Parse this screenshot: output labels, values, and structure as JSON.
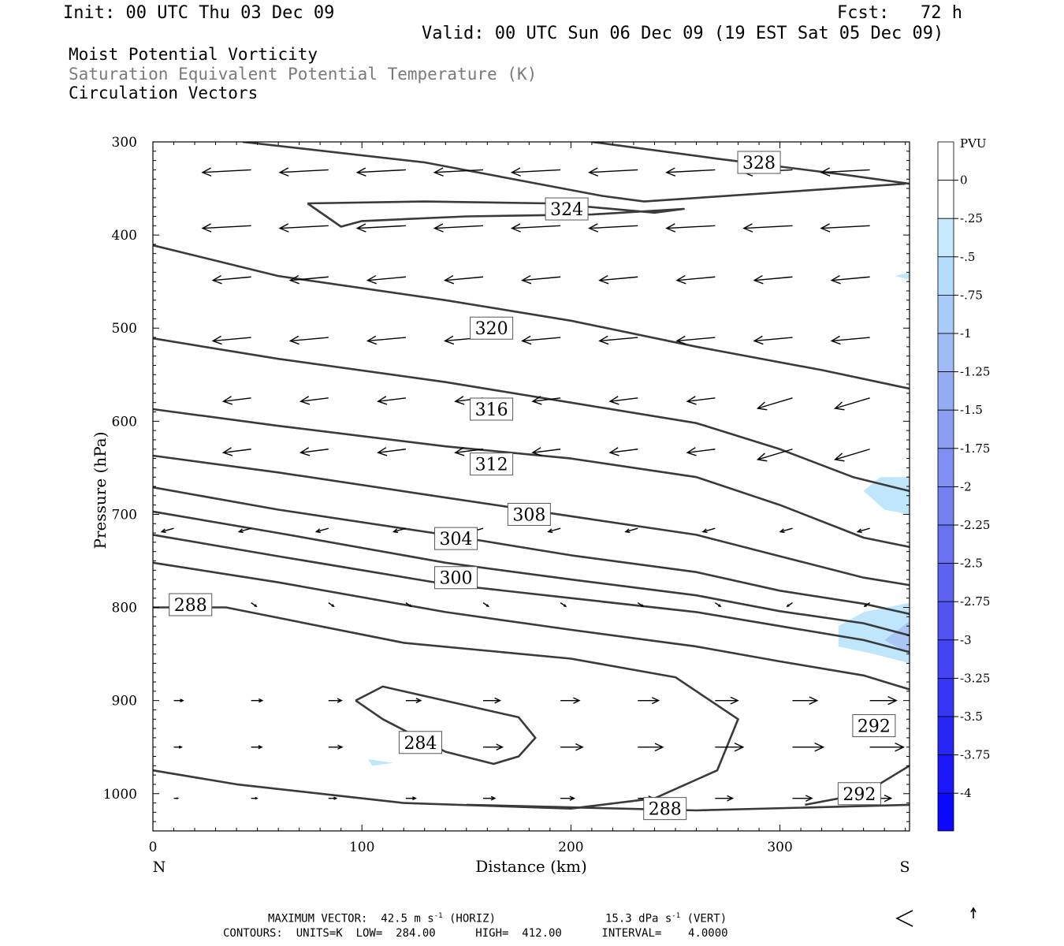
{
  "header": {
    "init": "Init: 00 UTC Thu 03 Dec 09",
    "fcst": "Fcst:   72 h",
    "valid": "Valid: 00 UTC Sun 06 Dec 09 (19 EST Sat 05 Dec 09)",
    "field1": "Moist Potential Vorticity",
    "field2": "Saturation Equivalent Potential Temperature (K)",
    "field3": "Circulation Vectors"
  },
  "footer": {
    "max_vector": "MAXIMUM VECTOR:  42.5 m s",
    "max_vector_exp": "-1",
    "max_vector_horiz": " (HORIZ)",
    "vert": "15.3 dPa s",
    "vert_exp": "-1",
    "vert_suffix": " (VERT)",
    "contours": "CONTOURS:  UNITS=K  LOW=  284.00      HIGH=  412.00      INTERVAL=    4.0000"
  },
  "colors": {
    "contour": "#3a3a3a",
    "pv_light": "#bfe6fb",
    "pv_mid": "#a9c6f5"
  },
  "colorbar": {
    "unit": "PVU",
    "labels": [
      "0",
      "-.25",
      "-.5",
      "-.75",
      "-1",
      "-1.25",
      "-1.5",
      "-1.75",
      "-2",
      "-2.25",
      "-2.5",
      "-2.75",
      "-3",
      "-3.25",
      "-3.5",
      "-3.75",
      "-4"
    ],
    "colors": [
      "#ffffff",
      "#ffffff",
      "#c6e9fc",
      "#b4dcfb",
      "#a9cbf7",
      "#9fbcf5",
      "#95adf3",
      "#8b9ef1",
      "#808ff1",
      "#7580f1",
      "#6a71f1",
      "#5e62f1",
      "#5253f1",
      "#4544f3",
      "#3735f5",
      "#2826f7",
      "#1a17fa",
      "#0b08fd"
    ]
  },
  "chart_data": {
    "type": "contour",
    "xlabel": "Distance (km)",
    "ylabel": "Pressure (hPa)",
    "x_ticks": [
      0,
      100,
      200,
      300
    ],
    "y_ticks": [
      300,
      400,
      500,
      600,
      700,
      800,
      900,
      1000
    ],
    "x_end_labels": [
      "N",
      "S"
    ],
    "xlim": [
      0,
      362
    ],
    "ylim": [
      300,
      1040
    ],
    "contour_units": "K",
    "contour_interval": 4,
    "contours": [
      {
        "value": 328,
        "label": "328",
        "label_at": [
          290,
          322
        ],
        "points": [
          [
            43,
            300
          ],
          [
            130,
            322
          ],
          [
            215,
            358
          ],
          [
            235,
            364
          ],
          [
            360,
            345
          ]
        ]
      },
      {
        "value": 328,
        "label": null,
        "points": [
          [
            210,
            300
          ],
          [
            270,
            318
          ],
          [
            330,
            335
          ],
          [
            362,
            345
          ]
        ]
      },
      {
        "value": 324,
        "label": "324",
        "label_at": [
          198,
          372
        ],
        "points": [
          [
            74,
            366
          ],
          [
            130,
            364
          ],
          [
            190,
            366
          ],
          [
            240,
            376
          ],
          [
            254,
            372
          ],
          [
            210,
            378
          ],
          [
            150,
            380
          ],
          [
            100,
            385
          ],
          [
            90,
            391
          ],
          [
            74,
            366
          ]
        ]
      },
      {
        "value": 320,
        "label": "320",
        "label_at": [
          162,
          500
        ],
        "points": [
          [
            0,
            411
          ],
          [
            60,
            444
          ],
          [
            140,
            470
          ],
          [
            200,
            492
          ],
          [
            260,
            520
          ],
          [
            320,
            545
          ],
          [
            362,
            565
          ]
        ]
      },
      {
        "value": 316,
        "label": "316",
        "label_at": [
          162,
          587
        ],
        "points": [
          [
            0,
            511
          ],
          [
            60,
            533
          ],
          [
            140,
            558
          ],
          [
            200,
            580
          ],
          [
            260,
            602
          ],
          [
            300,
            630
          ],
          [
            335,
            660
          ],
          [
            362,
            675
          ]
        ]
      },
      {
        "value": 312,
        "label": "312",
        "label_at": [
          162,
          646
        ],
        "points": [
          [
            0,
            587
          ],
          [
            60,
            605
          ],
          [
            140,
            627
          ],
          [
            200,
            640
          ],
          [
            260,
            660
          ],
          [
            300,
            690
          ],
          [
            340,
            725
          ],
          [
            362,
            735
          ]
        ]
      },
      {
        "value": 308,
        "label": "308",
        "label_at": [
          180,
          700
        ],
        "points": [
          [
            0,
            637
          ],
          [
            60,
            655
          ],
          [
            140,
            682
          ],
          [
            200,
            702
          ],
          [
            260,
            722
          ],
          [
            300,
            745
          ],
          [
            340,
            768
          ],
          [
            362,
            776
          ]
        ]
      },
      {
        "value": 304,
        "label": "304",
        "label_at": [
          145,
          726
        ],
        "points": [
          [
            0,
            671
          ],
          [
            60,
            695
          ],
          [
            140,
            722
          ],
          [
            200,
            744
          ],
          [
            260,
            762
          ],
          [
            300,
            782
          ],
          [
            340,
            796
          ],
          [
            362,
            807
          ]
        ]
      },
      {
        "value": 300,
        "label": "300",
        "label_at": [
          145,
          768
        ],
        "points": [
          [
            0,
            697
          ],
          [
            60,
            720
          ],
          [
            140,
            752
          ],
          [
            200,
            770
          ],
          [
            260,
            787
          ],
          [
            300,
            804
          ],
          [
            340,
            817
          ],
          [
            362,
            830
          ]
        ]
      },
      {
        "value": 296,
        "label": null,
        "points": [
          [
            0,
            722
          ],
          [
            60,
            745
          ],
          [
            140,
            775
          ],
          [
            200,
            790
          ],
          [
            260,
            805
          ],
          [
            300,
            820
          ],
          [
            340,
            835
          ],
          [
            362,
            848
          ]
        ]
      },
      {
        "value": 292,
        "label": "292",
        "label_at": [
          345,
          927
        ],
        "points": [
          [
            0,
            752
          ],
          [
            60,
            773
          ],
          [
            140,
            805
          ],
          [
            200,
            824
          ],
          [
            260,
            842
          ],
          [
            300,
            858
          ],
          [
            340,
            873
          ],
          [
            362,
            888
          ]
        ]
      },
      {
        "value": 288,
        "label": "288",
        "label_at": [
          18,
          797
        ],
        "points": [
          [
            0,
            800
          ],
          [
            35,
            800
          ],
          [
            120,
            838
          ],
          [
            200,
            855
          ],
          [
            250,
            875
          ],
          [
            280,
            920
          ],
          [
            270,
            975
          ],
          [
            240,
            1005
          ],
          [
            200,
            1016
          ],
          [
            120,
            1010
          ],
          [
            40,
            990
          ],
          [
            0,
            975
          ]
        ]
      },
      {
        "value": 284,
        "label": "284",
        "label_at": [
          128,
          945
        ],
        "points": [
          [
            97,
            900
          ],
          [
            110,
            885
          ],
          [
            175,
            918
          ],
          [
            183,
            940
          ],
          [
            175,
            960
          ],
          [
            163,
            968
          ],
          [
            140,
            955
          ],
          [
            110,
            920
          ],
          [
            97,
            900
          ]
        ]
      },
      {
        "value": 292,
        "label": "292",
        "label_at": [
          338,
          1000
        ],
        "points": [
          [
            312,
            1012
          ],
          [
            340,
            1000
          ],
          [
            362,
            970
          ]
        ]
      },
      {
        "value": 288,
        "label": "288",
        "label_at": [
          245,
          1016
        ],
        "points": [
          [
            150,
            1012
          ],
          [
            260,
            1018
          ],
          [
            362,
            1012
          ]
        ]
      }
    ],
    "pv_shading": [
      {
        "range": "-0.25 to -0.5",
        "points": [
          [
            340,
            675
          ],
          [
            348,
            660
          ],
          [
            362,
            660
          ],
          [
            362,
            700
          ],
          [
            350,
            695
          ]
        ]
      },
      {
        "range": "-0.25 to -0.5",
        "points": [
          [
            328,
            820
          ],
          [
            340,
            805
          ],
          [
            362,
            795
          ],
          [
            362,
            860
          ],
          [
            345,
            850
          ],
          [
            328,
            842
          ]
        ]
      },
      {
        "range": "-0.5 to -0.75",
        "points": [
          [
            350,
            835
          ],
          [
            362,
            815
          ],
          [
            362,
            850
          ]
        ]
      },
      {
        "range": "-0.25 to -0.5",
        "points": [
          [
            355,
            444
          ],
          [
            362,
            440
          ],
          [
            362,
            448
          ]
        ]
      },
      {
        "range": "-0.25 to -0.5",
        "points": [
          [
            103,
            963
          ],
          [
            115,
            967
          ],
          [
            105,
            970
          ]
        ]
      }
    ],
    "vectors_note": "circulation vectors on a regular grid; u in km-scale, w in hPa-scale"
  },
  "reference_vector": {
    "label": ""
  }
}
